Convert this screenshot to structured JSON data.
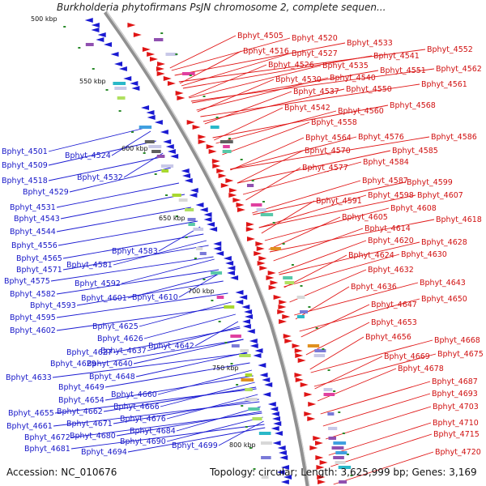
{
  "title": "Burkholderia phytofirmans PsJN chromosome 2, complete sequen...",
  "accession": "Accession: NC_010676",
  "topology": "Topology: circular; Length: 3,625,999 bp; Genes: 3,169",
  "kbp_labels": [
    "500 kbp",
    "550 kbp",
    "600 kbp",
    "650 kbp",
    "700 kbp",
    "750 kbp",
    "800 kbp"
  ],
  "colors": {
    "reverse_strand": "#1a1ad2",
    "forward_strand": "#e01515",
    "backbone": "#909090",
    "ticks": "#2a8a2a"
  },
  "reverse_labels": [
    "Bphyt_4501",
    "Bphyt_4509",
    "Bphyt_4518",
    "Bphyt_4524",
    "Bphyt_4529",
    "Bphyt_4532",
    "Bphyt_4531",
    "Bphyt_4543",
    "Bphyt_4544",
    "Bphyt_4556",
    "Bphyt_4565",
    "Bphyt_4571",
    "Bphyt_4581",
    "Bphyt_4583",
    "Bphyt_4575",
    "Bphyt_4592",
    "Bphyt_4582",
    "Bphyt_4601",
    "Bphyt_4610",
    "Bphyt_4593",
    "Bphyt_4595",
    "Bphyt_4602",
    "Bphyt_4625",
    "Bphyt_4626",
    "Bphyt_4627",
    "Bphyt_4637",
    "Bphyt_4642",
    "Bphyt_4629",
    "Bphyt_4640",
    "Bphyt_4633",
    "Bphyt_4648",
    "Bphyt_4649",
    "Bphyt_4660",
    "Bphyt_4654",
    "Bphyt_4666",
    "Bphyt_4655",
    "Bphyt_4662",
    "Bphyt_4676",
    "Bphyt_4661",
    "Bphyt_4671",
    "Bphyt_4684",
    "Bphyt_4672",
    "Bphyt_4680",
    "Bphyt_4690",
    "Bphyt_4699",
    "Bphyt_4681",
    "Bphyt_4694"
  ],
  "forward_labels": [
    "Bphyt_4505",
    "Bphyt_4520",
    "Bphyt_4533",
    "Bphyt_4516",
    "Bphyt_4527",
    "Bphyt_4541",
    "Bphyt_4552",
    "Bphyt_4526",
    "Bphyt_4535",
    "Bphyt_4551",
    "Bphyt_4562",
    "Bphyt_4530",
    "Bphyt_4540",
    "Bphyt_4561",
    "Bphyt_4537",
    "Bphyt_4550",
    "Bphyt_4568",
    "Bphyt_4542",
    "Bphyt_4560",
    "Bphyt_4558",
    "Bphyt_4564",
    "Bphyt_4576",
    "Bphyt_4586",
    "Bphyt_4570",
    "Bphyt_4585",
    "Bphyt_4584",
    "Bphyt_4577",
    "Bphyt_4587",
    "Bphyt_4599",
    "Bphyt_4598",
    "Bphyt_4607",
    "Bphyt_4591",
    "Bphyt_4608",
    "Bphyt_4605",
    "Bphyt_4618",
    "Bphyt_4614",
    "Bphyt_4620",
    "Bphyt_4628",
    "Bphyt_4624",
    "Bphyt_4630",
    "Bphyt_4632",
    "Bphyt_4643",
    "Bphyt_4636",
    "Bphyt_4650",
    "Bphyt_4647",
    "Bphyt_4653",
    "Bphyt_4668",
    "Bphyt_4656",
    "Bphyt_4675",
    "Bphyt_4669",
    "Bphyt_4678",
    "Bphyt_4687",
    "Bphyt_4693",
    "Bphyt_4703",
    "Bphyt_4710",
    "Bphyt_4715",
    "Bphyt_4720"
  ]
}
